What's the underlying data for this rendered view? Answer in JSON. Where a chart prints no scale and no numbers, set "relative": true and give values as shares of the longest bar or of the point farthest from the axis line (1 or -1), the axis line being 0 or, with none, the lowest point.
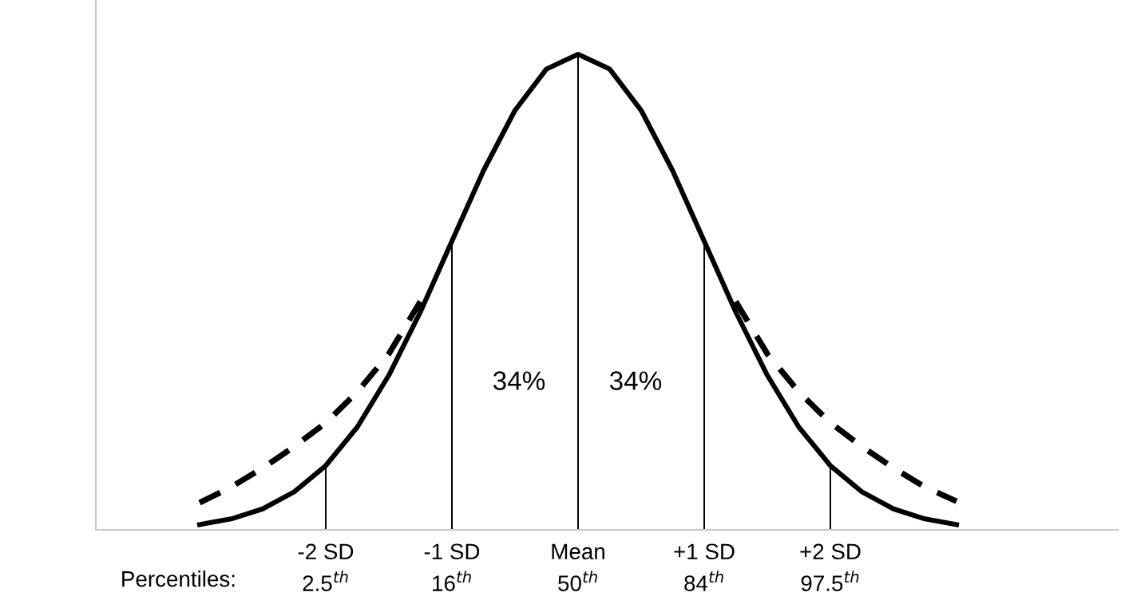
{
  "chart_data": {
    "type": "line",
    "relative": true,
    "categories": [
      null,
      null,
      null,
      null,
      "-2 SD\n2.5$^{th}$",
      null,
      null,
      null,
      "-1 SD\n16$^{th}$",
      null,
      null,
      null,
      "Mean\n50$^{th}$",
      null,
      null,
      null,
      "+1 SD\n84$^{th}$",
      null,
      null,
      null,
      "+2 SD\n97.5$^{th}$",
      null,
      null,
      null,
      null
    ],
    "series": [
      {
        "color": "#000000",
        "line_style": "solid",
        "values": [
          0.011,
          0.023,
          0.044,
          0.08,
          0.135,
          0.216,
          0.325,
          0.458,
          0.607,
          0.755,
          0.882,
          0.969,
          1,
          0.969,
          0.882,
          0.755,
          0.607,
          0.458,
          0.325,
          0.216,
          0.135,
          0.08,
          0.044,
          0.023,
          0.011
        ]
      },
      {
        "color": "#000000",
        "line_style": "dashed",
        "values": [
          0.057,
          0.09,
          0.13,
          0.175,
          0.225,
          0.29,
          0.37,
          0.48,
          null,
          null,
          null,
          null,
          null,
          null,
          null,
          null,
          null,
          null,
          null,
          null,
          null,
          null,
          null,
          null,
          null
        ]
      },
      {
        "color": "#000000",
        "line_style": "dashed",
        "values": [
          null,
          null,
          null,
          null,
          null,
          null,
          null,
          null,
          null,
          null,
          null,
          null,
          null,
          null,
          null,
          null,
          null,
          0.48,
          0.37,
          0.29,
          0.225,
          0.175,
          0.13,
          0.09,
          0.06
        ]
      },
      {
        "type": "bar",
        "color": "#000000",
        "values": [
          null,
          null,
          null,
          null,
          0.135,
          null,
          null,
          null,
          0.607,
          null,
          null,
          null,
          1,
          null,
          null,
          null,
          0.607,
          null,
          null,
          null,
          0.135,
          null,
          null,
          null,
          null
        ]
      }
    ],
    "annotations": [
      "34%",
      "34%",
      "Percentiles:"
    ],
    "grid": false,
    "legend": false
  }
}
